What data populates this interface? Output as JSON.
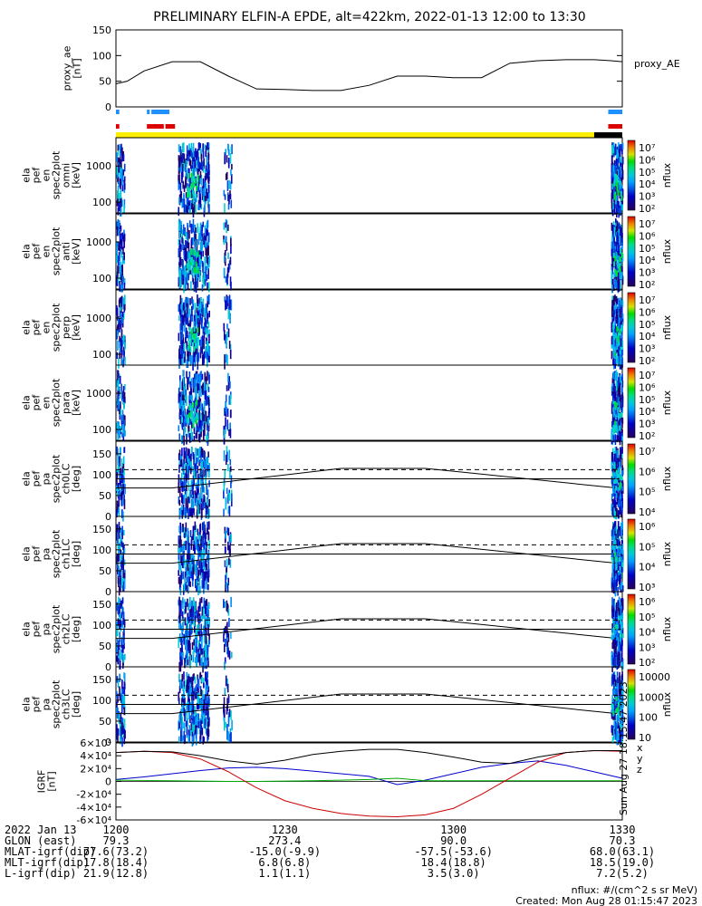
{
  "title": "PRELIMINARY ELFIN-A EPDE, alt=422km, 2022-01-13 12:00 to 13:30",
  "colors": {
    "ae_line": "#000000",
    "fgm_x": "#0000cc",
    "fgm_y": "#00aa00",
    "fgm_z": "#cc0000",
    "fgm_mag": "#000000",
    "status_yellow": "#ffee00",
    "status_black": "#000000",
    "mode_blue": "#1e90ff",
    "mode_red": "#dd0000"
  },
  "chart_data": [
    {
      "id": "proxy_ae",
      "type": "line",
      "ylabel": "proxy_ae\n[nT]",
      "legend": "proxy_AE",
      "ylim": [
        0,
        150
      ],
      "yticks": [
        "0",
        "50",
        "100",
        "150"
      ],
      "x": [
        0,
        2,
        5,
        10,
        15,
        20,
        25,
        30,
        35,
        40,
        45,
        50,
        55,
        60,
        65,
        70,
        75,
        80,
        85,
        88,
        90
      ],
      "y": [
        45,
        50,
        70,
        88,
        88,
        60,
        35,
        34,
        32,
        32,
        42,
        60,
        60,
        57,
        57,
        85,
        90,
        92,
        92,
        90,
        88
      ]
    },
    {
      "id": "spec_omni",
      "type": "heatmap",
      "ylabel": "ela\npef\nen\nspec2plot\nomni\n[keV]",
      "ylog": true,
      "yticks": [
        "100",
        "1000"
      ],
      "zlabel": "nflux",
      "zticks": [
        "10⁷",
        "10⁶",
        "10⁵",
        "10⁴",
        "10³",
        "10²"
      ]
    },
    {
      "id": "spec_anti",
      "type": "heatmap",
      "ylabel": "ela\npef\nen\nspec2plot\nanti\n[keV]",
      "ylog": true,
      "yticks": [
        "100",
        "1000"
      ],
      "zlabel": "nflux",
      "zticks": [
        "10⁷",
        "10⁶",
        "10⁵",
        "10⁴",
        "10³",
        "10²"
      ]
    },
    {
      "id": "spec_perp",
      "type": "heatmap",
      "ylabel": "ela\npef\nen\nspec2plot\nperp\n[keV]",
      "ylog": true,
      "yticks": [
        "100",
        "1000"
      ],
      "zlabel": "nflux",
      "zticks": [
        "10⁷",
        "10⁶",
        "10⁵",
        "10⁴",
        "10³",
        "10²"
      ]
    },
    {
      "id": "spec_para",
      "type": "heatmap",
      "ylabel": "ela\npef\nen\nspec2plot\npara\n[keV]",
      "ylog": true,
      "yticks": [
        "100",
        "1000"
      ],
      "zlabel": "nflux",
      "zticks": [
        "10⁷",
        "10⁶",
        "10⁵",
        "10⁴",
        "10³",
        "10²"
      ]
    },
    {
      "id": "pa_ch0",
      "type": "heatmap",
      "ylabel": "ela\npef\npa\nspec2plot\nch0LC\n[deg]",
      "ylim": [
        0,
        180
      ],
      "yticks": [
        "0",
        "50",
        "100",
        "150"
      ],
      "zlabel": "nflux",
      "zticks": [
        "10⁷",
        "10⁶",
        "10⁵",
        "10⁴"
      ]
    },
    {
      "id": "pa_ch1",
      "type": "heatmap",
      "ylabel": "ela\npef\npa\nspec2plot\nch1LC\n[deg]",
      "ylim": [
        0,
        180
      ],
      "yticks": [
        "0",
        "50",
        "100",
        "150"
      ],
      "zlabel": "nflux",
      "zticks": [
        "10⁶",
        "10⁵",
        "10⁴",
        "10³"
      ]
    },
    {
      "id": "pa_ch2",
      "type": "heatmap",
      "ylabel": "ela\npef\npa\nspec2plot\nch2LC\n[deg]",
      "ylim": [
        0,
        180
      ],
      "yticks": [
        "0",
        "50",
        "100",
        "150"
      ],
      "zlabel": "nflux",
      "zticks": [
        "10⁶",
        "10⁵",
        "10⁴",
        "10³",
        "10²"
      ]
    },
    {
      "id": "pa_ch3",
      "type": "heatmap",
      "ylabel": "ela\npef\npa\nspec2plot\nch3LC\n[deg]",
      "ylim": [
        0,
        180
      ],
      "yticks": [
        "0",
        "50",
        "100",
        "150"
      ],
      "zlabel": "nflux",
      "zticks": [
        "10000",
        "1000",
        "100",
        "10"
      ]
    },
    {
      "id": "igrf",
      "type": "line",
      "ylabel": "IGRF\n[nT]",
      "ylim": [
        -60000,
        60000
      ],
      "yticks": [
        "-6×10⁴",
        "-4×10⁴",
        "-2×10⁴",
        "0",
        "2×10⁴",
        "4×10⁴",
        "6×10⁴"
      ],
      "legend": [
        "x",
        "y",
        "z"
      ],
      "x": [
        0,
        5,
        10,
        15,
        20,
        25,
        30,
        35,
        40,
        45,
        50,
        55,
        60,
        65,
        70,
        75,
        80,
        85,
        90
      ],
      "series": [
        {
          "name": "x",
          "values": [
            3000,
            7000,
            12000,
            17000,
            21000,
            22000,
            20000,
            16000,
            12000,
            8000,
            -5000,
            2000,
            12000,
            22000,
            28000,
            32000,
            25000,
            15000,
            5000
          ]
        },
        {
          "name": "y",
          "values": [
            2000,
            1500,
            1000,
            500,
            0,
            0,
            500,
            1000,
            2000,
            3000,
            5000,
            1000,
            1000,
            1000,
            1000,
            1000,
            1000,
            1000,
            1000
          ]
        },
        {
          "name": "z",
          "values": [
            45000,
            47000,
            45000,
            35000,
            15000,
            -10000,
            -30000,
            -42000,
            -50000,
            -54000,
            -55000,
            -52000,
            -42000,
            -20000,
            5000,
            30000,
            45000,
            48000,
            47000
          ]
        },
        {
          "name": "mag",
          "values": [
            45000,
            47000,
            46000,
            40000,
            32000,
            27000,
            33000,
            42000,
            47000,
            50000,
            50000,
            45000,
            38000,
            30000,
            28000,
            38000,
            45000,
            48000,
            48000
          ]
        }
      ]
    }
  ],
  "pa_lines": {
    "dashed_deg": 112,
    "upper_deg": 90,
    "lower_deg": 68
  },
  "xaxis": {
    "rows": [
      {
        "label": "2022 Jan 13",
        "values": [
          "1200",
          "1230",
          "1300",
          "1330"
        ]
      },
      {
        "label": "GLON (east)",
        "values": [
          "79.3",
          "273.4",
          "90.0",
          "70.3"
        ]
      },
      {
        "label": "MLAT-igrf(dip)",
        "values": [
          "77.6(73.2)",
          "-15.0(-9.9)",
          "-57.5(-53.6)",
          "68.0(63.1)"
        ]
      },
      {
        "label": "MLT-igrf(dip)",
        "values": [
          "17.8(18.4)",
          "6.8(6.8)",
          "18.4(18.8)",
          "18.5(19.0)"
        ]
      },
      {
        "label": "L-igrf(dip)",
        "values": [
          "21.9(12.8)",
          "1.1(1.1)",
          "3.5(3.0)",
          "7.2(5.2)"
        ]
      }
    ]
  },
  "footer": {
    "units": "nflux: #/(cm^2 s sr MeV)",
    "created": "Created: Mon Aug 28 01:15:47 2023"
  },
  "side_stamp": "Sun Aug 27 18:15:47 2023"
}
